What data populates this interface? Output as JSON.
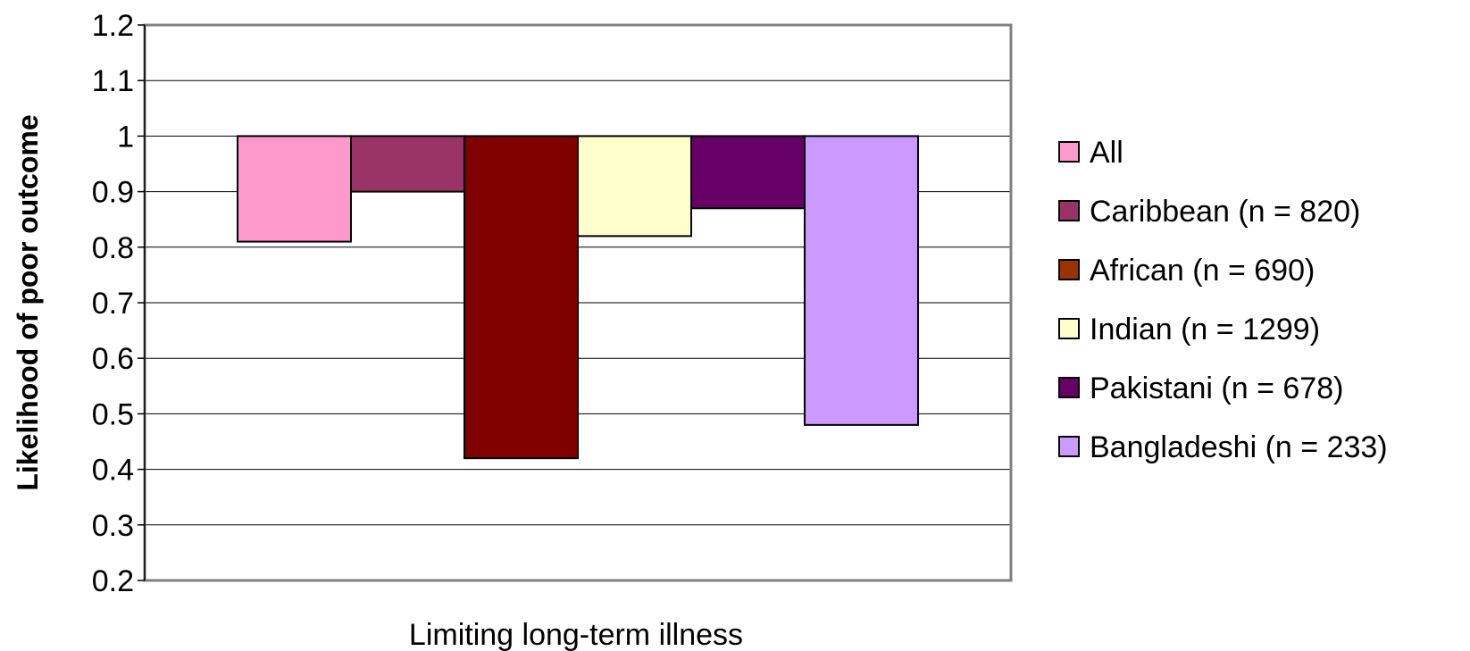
{
  "chart_data": {
    "type": "bar",
    "baseline": 1.0,
    "ylabel": "Likelihood of poor outcome",
    "xlabel": "Limiting long-term illness",
    "ylim": [
      0.2,
      1.2
    ],
    "yticks": [
      "0.2",
      "0.3",
      "0.4",
      "0.5",
      "0.6",
      "0.7",
      "0.8",
      "0.9",
      "1",
      "1.1",
      "1.2"
    ],
    "grid": true,
    "legend_position": "right",
    "categories": [
      "Limiting long-term illness"
    ],
    "series": [
      {
        "name": "All",
        "values": [
          0.81
        ],
        "color": "#FF99CC",
        "legend_color": "#FF99CC"
      },
      {
        "name": "Caribbean (n = 820)",
        "values": [
          0.9
        ],
        "color": "#993366",
        "legend_color": "#993366"
      },
      {
        "name": "African (n = 690)",
        "values": [
          0.42
        ],
        "color": "#800000",
        "legend_color": "#993300"
      },
      {
        "name": "Indian (n = 1299)",
        "values": [
          0.82
        ],
        "color": "#FFFFCC",
        "legend_color": "#FFFFCC"
      },
      {
        "name": "Pakistani (n = 678)",
        "values": [
          0.87
        ],
        "color": "#660066",
        "legend_color": "#660066"
      },
      {
        "name": "Bangladeshi (n = 233)",
        "values": [
          0.48
        ],
        "color": "#CC99FF",
        "legend_color": "#CC99FF"
      }
    ]
  }
}
